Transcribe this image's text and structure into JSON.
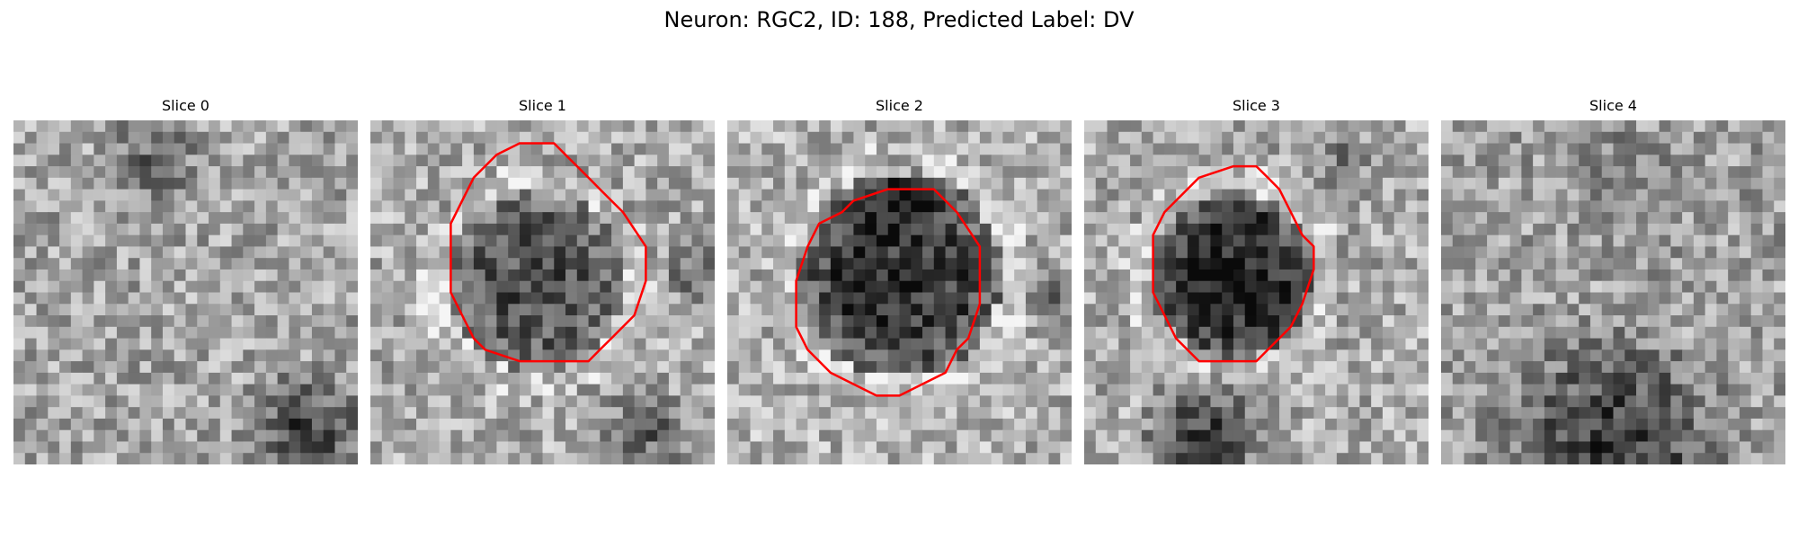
{
  "figure": {
    "title": "Neuron: RGC2, ID: 188, Predicted Label: DV"
  },
  "colors": {
    "contour": "#ff0000",
    "background": "#ffffff"
  },
  "slices": [
    {
      "title": "Slice 0",
      "has_contour": false
    },
    {
      "title": "Slice 1",
      "has_contour": true
    },
    {
      "title": "Slice 2",
      "has_contour": true
    },
    {
      "title": "Slice 3",
      "has_contour": true
    },
    {
      "title": "Slice 4",
      "has_contour": false
    }
  ]
}
